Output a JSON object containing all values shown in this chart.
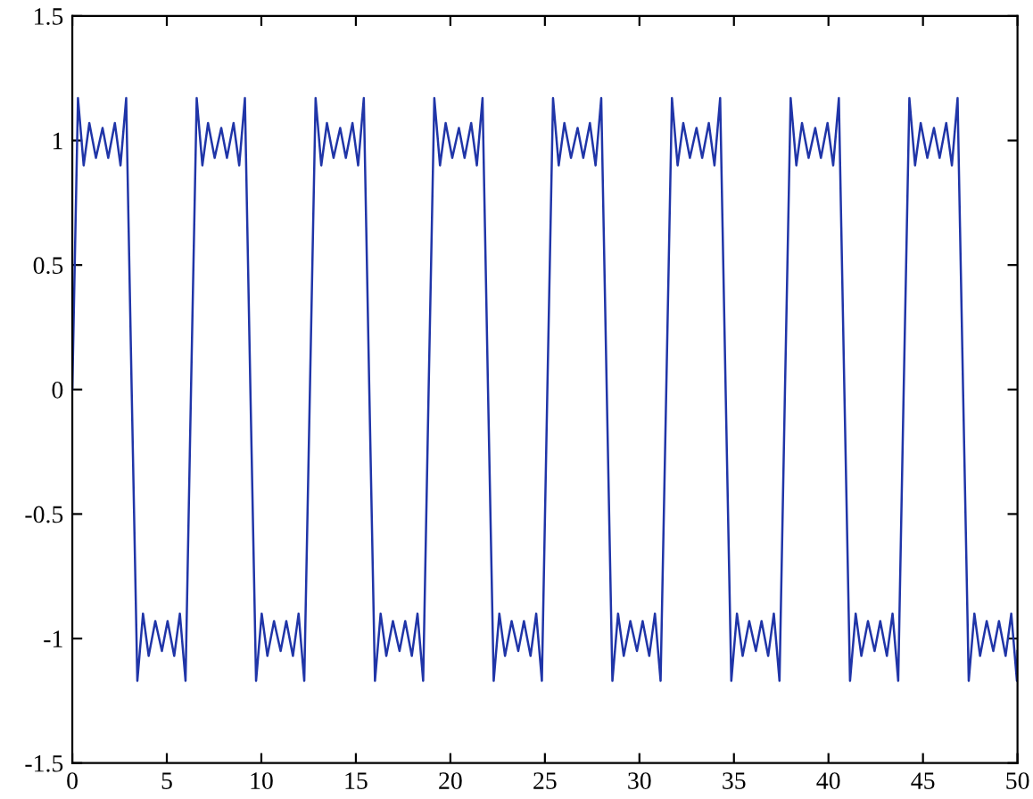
{
  "chart_data": {
    "type": "line",
    "grid": false,
    "marker": "none",
    "line_style": "solid",
    "xlim": [
      0,
      50
    ],
    "ylim": [
      -1.5,
      1.5
    ],
    "xticks": [
      0,
      5,
      10,
      15,
      20,
      25,
      30,
      35,
      40,
      45,
      50
    ],
    "yticks": [
      -1.5,
      -1,
      -0.5,
      0,
      0.5,
      1,
      1.5
    ],
    "series": [
      {
        "color": "#2035a8",
        "x": [
          0,
          0.3,
          0.6,
          0.9,
          1.25,
          1.6,
          1.9,
          2.25,
          2.55,
          2.85,
          3.14,
          3.44,
          3.74,
          4.04,
          4.39,
          4.74,
          5.04,
          5.39,
          5.69,
          5.99,
          6.28,
          6.58,
          6.88,
          7.18,
          7.53,
          7.88,
          8.18,
          8.53,
          8.83,
          9.13,
          9.42,
          9.72,
          10.02,
          10.32,
          10.67,
          11.02,
          11.32,
          11.67,
          11.97,
          12.27,
          12.57,
          12.87,
          13.17,
          13.47,
          13.82,
          14.17,
          14.47,
          14.82,
          15.12,
          15.42,
          15.71,
          16.01,
          16.31,
          16.61,
          16.96,
          17.31,
          17.61,
          17.96,
          18.26,
          18.56,
          18.85,
          19.15,
          19.45,
          19.75,
          20.1,
          20.45,
          20.75,
          21.1,
          21.4,
          21.7,
          21.99,
          22.29,
          22.59,
          22.89,
          23.24,
          23.59,
          23.89,
          24.24,
          24.54,
          24.84,
          25.13,
          25.43,
          25.73,
          26.03,
          26.38,
          26.73,
          27.03,
          27.38,
          27.68,
          27.98,
          28.27,
          28.57,
          28.87,
          29.17,
          29.52,
          29.87,
          30.17,
          30.52,
          30.82,
          31.12,
          31.42,
          31.72,
          32.02,
          32.32,
          32.67,
          33.02,
          33.32,
          33.67,
          33.97,
          34.27,
          34.56,
          34.86,
          35.16,
          35.46,
          35.81,
          36.16,
          36.46,
          36.81,
          37.11,
          37.41,
          37.7,
          38.0,
          38.3,
          38.6,
          38.95,
          39.3,
          39.6,
          39.95,
          40.25,
          40.55,
          40.84,
          41.14,
          41.44,
          41.74,
          42.09,
          42.44,
          42.74,
          43.09,
          43.39,
          43.69,
          43.98,
          44.28,
          44.58,
          44.88,
          45.23,
          45.58,
          45.88,
          46.23,
          46.53,
          46.83,
          47.12,
          47.42,
          47.72,
          48.02,
          48.37,
          48.72,
          49.02,
          49.37,
          49.67,
          49.97,
          50
        ],
        "values": [
          0,
          1.17,
          0.9,
          1.07,
          0.93,
          1.05,
          0.93,
          1.07,
          0.9,
          1.17,
          0,
          -1.17,
          -0.9,
          -1.07,
          -0.93,
          -1.05,
          -0.93,
          -1.07,
          -0.9,
          -1.17,
          0,
          1.17,
          0.9,
          1.07,
          0.93,
          1.05,
          0.93,
          1.07,
          0.9,
          1.17,
          0,
          -1.17,
          -0.9,
          -1.07,
          -0.93,
          -1.05,
          -0.93,
          -1.07,
          -0.9,
          -1.17,
          0,
          1.17,
          0.9,
          1.07,
          0.93,
          1.05,
          0.93,
          1.07,
          0.9,
          1.17,
          0,
          -1.17,
          -0.9,
          -1.07,
          -0.93,
          -1.05,
          -0.93,
          -1.07,
          -0.9,
          -1.17,
          0,
          1.17,
          0.9,
          1.07,
          0.93,
          1.05,
          0.93,
          1.07,
          0.9,
          1.17,
          0,
          -1.17,
          -0.9,
          -1.07,
          -0.93,
          -1.05,
          -0.93,
          -1.07,
          -0.9,
          -1.17,
          0,
          1.17,
          0.9,
          1.07,
          0.93,
          1.05,
          0.93,
          1.07,
          0.9,
          1.17,
          0,
          -1.17,
          -0.9,
          -1.07,
          -0.93,
          -1.05,
          -0.93,
          -1.07,
          -0.9,
          -1.17,
          0,
          1.17,
          0.9,
          1.07,
          0.93,
          1.05,
          0.93,
          1.07,
          0.9,
          1.17,
          0,
          -1.17,
          -0.9,
          -1.07,
          -0.93,
          -1.05,
          -0.93,
          -1.07,
          -0.9,
          -1.17,
          0,
          1.17,
          0.9,
          1.07,
          0.93,
          1.05,
          0.93,
          1.07,
          0.9,
          1.17,
          0,
          -1.17,
          -0.9,
          -1.07,
          -0.93,
          -1.05,
          -0.93,
          -1.07,
          -0.9,
          -1.17,
          0,
          1.17,
          0.9,
          1.07,
          0.93,
          1.05,
          0.93,
          1.07,
          0.9,
          1.17,
          0,
          -1.17,
          -0.9,
          -1.07,
          -0.93,
          -1.05,
          -0.93,
          -1.07,
          -0.9,
          -1.17,
          -1.05
        ]
      }
    ]
  }
}
